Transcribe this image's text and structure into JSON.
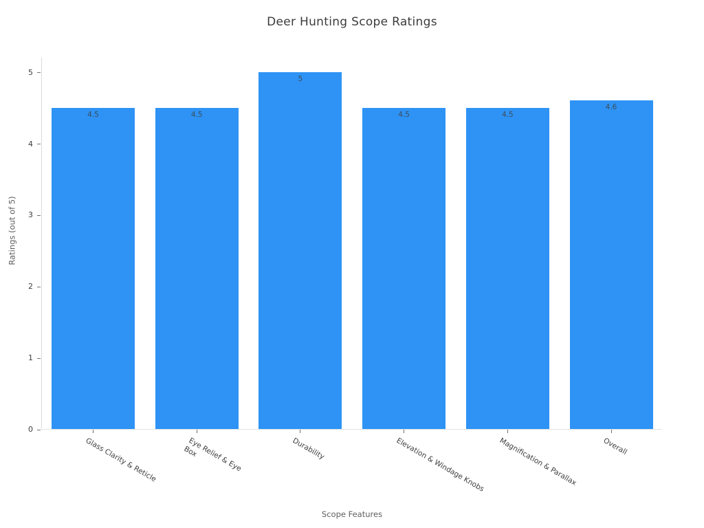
{
  "chart_data": {
    "type": "bar",
    "title": "Deer Hunting Scope Ratings",
    "xlabel": "Scope Features",
    "ylabel": "Ratings (out of 5)",
    "categories": [
      "Glass Clarity & Reticle",
      "Eye Relief & Eye\nBox",
      "Durability",
      "Elevation & Windage Knobs",
      "Magnification & Parallax",
      "Overall"
    ],
    "values": [
      4.5,
      4.5,
      5,
      4.5,
      4.5,
      4.6
    ],
    "value_labels": [
      "4.5",
      "4.5",
      "5",
      "4.5",
      "4.5",
      "4.6"
    ],
    "ylim": [
      0,
      5
    ],
    "yticks": [
      0,
      1,
      2,
      3,
      4,
      5
    ],
    "bar_color": "#2E93F5",
    "axis_line_color": "#d9d9d9",
    "tick_color": "#707070",
    "label_rotation_deg": 30,
    "grid": false,
    "legend": null,
    "background": "#ffffff"
  }
}
